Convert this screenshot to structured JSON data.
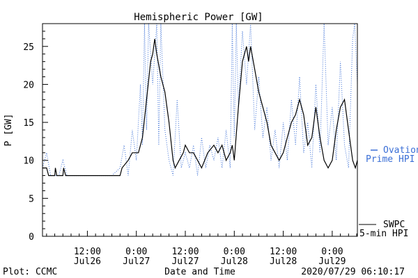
{
  "colors": {
    "swpc": "#000000",
    "ovation": "#3b6fd6",
    "axis": "#000000",
    "background": "#ffffff"
  },
  "footer": {
    "left": "Plot: CCMC",
    "right": "2020/07/29 06:10:17"
  },
  "chart_data": {
    "type": "line",
    "title": "Hemispheric Power [GW]",
    "ylabel": "P [GW]",
    "xlabel": "Date and Time",
    "ylim": [
      0,
      28
    ],
    "xlim": [
      "2020-07-26T01:00",
      "2020-07-29T06:10"
    ],
    "grid": false,
    "y_ticks": [
      0,
      5,
      10,
      15,
      20,
      25
    ],
    "x_ticks": [
      {
        "x": "2020-07-26T12:00",
        "time": "12:00",
        "date": "Jul26"
      },
      {
        "x": "2020-07-27T00:00",
        "time": "0:00",
        "date": "Jul27"
      },
      {
        "x": "2020-07-27T12:00",
        "time": "12:00",
        "date": "Jul27"
      },
      {
        "x": "2020-07-28T00:00",
        "time": "0:00",
        "date": "Jul28"
      },
      {
        "x": "2020-07-28T12:00",
        "time": "12:00",
        "date": "Jul28"
      },
      {
        "x": "2020-07-29T00:00",
        "time": "0:00",
        "date": "Jul29"
      }
    ],
    "series": [
      {
        "name": "SWPC 5-min HPI",
        "legend_lines": [
          "SWPC",
          "5-min HPI"
        ],
        "style": "solid",
        "color": "#000000",
        "points": [
          [
            "2020-07-26T01:00",
            9
          ],
          [
            "2020-07-26T02:00",
            9
          ],
          [
            "2020-07-26T02:30",
            8
          ],
          [
            "2020-07-26T04:00",
            8
          ],
          [
            "2020-07-26T04:10",
            9
          ],
          [
            "2020-07-26T04:30",
            8
          ],
          [
            "2020-07-26T06:00",
            8
          ],
          [
            "2020-07-26T06:10",
            9
          ],
          [
            "2020-07-26T06:40",
            8
          ],
          [
            "2020-07-26T14:00",
            8
          ],
          [
            "2020-07-26T20:00",
            8
          ],
          [
            "2020-07-26T20:30",
            9
          ],
          [
            "2020-07-26T22:00",
            10
          ],
          [
            "2020-07-26T23:00",
            11
          ],
          [
            "2020-07-27T00:30",
            11
          ],
          [
            "2020-07-27T01:30",
            13
          ],
          [
            "2020-07-27T02:30",
            18
          ],
          [
            "2020-07-27T03:30",
            23
          ],
          [
            "2020-07-27T04:00",
            24
          ],
          [
            "2020-07-27T04:30",
            26
          ],
          [
            "2020-07-27T05:00",
            24
          ],
          [
            "2020-07-27T06:00",
            21
          ],
          [
            "2020-07-27T07:00",
            19
          ],
          [
            "2020-07-27T08:00",
            15
          ],
          [
            "2020-07-27T09:00",
            10
          ],
          [
            "2020-07-27T09:30",
            9
          ],
          [
            "2020-07-27T10:30",
            10
          ],
          [
            "2020-07-27T11:30",
            11
          ],
          [
            "2020-07-27T12:00",
            12
          ],
          [
            "2020-07-27T13:00",
            11
          ],
          [
            "2020-07-27T14:00",
            11
          ],
          [
            "2020-07-27T15:00",
            10
          ],
          [
            "2020-07-27T16:00",
            9
          ],
          [
            "2020-07-27T17:30",
            11
          ],
          [
            "2020-07-27T19:00",
            12
          ],
          [
            "2020-07-27T20:00",
            11
          ],
          [
            "2020-07-27T21:00",
            12
          ],
          [
            "2020-07-27T22:00",
            10
          ],
          [
            "2020-07-27T23:00",
            11
          ],
          [
            "2020-07-27T23:30",
            12
          ],
          [
            "2020-07-28T00:00",
            10
          ],
          [
            "2020-07-28T01:00",
            17
          ],
          [
            "2020-07-28T02:00",
            23
          ],
          [
            "2020-07-28T02:30",
            24
          ],
          [
            "2020-07-28T03:00",
            25
          ],
          [
            "2020-07-28T03:30",
            23
          ],
          [
            "2020-07-28T04:00",
            25
          ],
          [
            "2020-07-28T05:00",
            22
          ],
          [
            "2020-07-28T06:00",
            19
          ],
          [
            "2020-07-28T07:00",
            17
          ],
          [
            "2020-07-28T08:00",
            15
          ],
          [
            "2020-07-28T09:00",
            12
          ],
          [
            "2020-07-28T10:00",
            11
          ],
          [
            "2020-07-28T11:00",
            10
          ],
          [
            "2020-07-28T12:00",
            11
          ],
          [
            "2020-07-28T13:00",
            13
          ],
          [
            "2020-07-28T14:00",
            15
          ],
          [
            "2020-07-28T15:00",
            16
          ],
          [
            "2020-07-28T16:00",
            18
          ],
          [
            "2020-07-28T17:00",
            16
          ],
          [
            "2020-07-28T18:00",
            12
          ],
          [
            "2020-07-28T19:00",
            13
          ],
          [
            "2020-07-28T20:00",
            17
          ],
          [
            "2020-07-28T21:00",
            13
          ],
          [
            "2020-07-28T22:00",
            10
          ],
          [
            "2020-07-28T23:00",
            9
          ],
          [
            "2020-07-29T00:00",
            10
          ],
          [
            "2020-07-29T01:00",
            14
          ],
          [
            "2020-07-29T02:00",
            17
          ],
          [
            "2020-07-29T03:00",
            18
          ],
          [
            "2020-07-29T04:00",
            14
          ],
          [
            "2020-07-29T05:00",
            10
          ],
          [
            "2020-07-29T05:40",
            9
          ],
          [
            "2020-07-29T06:10",
            10
          ]
        ]
      },
      {
        "name": "Ovation Prime HPI",
        "legend_lines": [
          "Ovation",
          "Prime HPI"
        ],
        "style": "dotted",
        "color": "#3b6fd6",
        "points": [
          [
            "2020-07-26T01:00",
            9
          ],
          [
            "2020-07-26T02:00",
            11
          ],
          [
            "2020-07-26T03:00",
            8
          ],
          [
            "2020-07-26T05:00",
            8
          ],
          [
            "2020-07-26T06:00",
            10
          ],
          [
            "2020-07-26T07:00",
            8
          ],
          [
            "2020-07-26T18:00",
            8
          ],
          [
            "2020-07-26T20:00",
            9
          ],
          [
            "2020-07-26T21:00",
            12
          ],
          [
            "2020-07-26T22:00",
            8
          ],
          [
            "2020-07-26T23:00",
            14
          ],
          [
            "2020-07-27T00:00",
            10
          ],
          [
            "2020-07-27T01:00",
            20
          ],
          [
            "2020-07-27T01:30",
            12
          ],
          [
            "2020-07-27T02:00",
            28
          ],
          [
            "2020-07-27T02:30",
            14
          ],
          [
            "2020-07-27T03:00",
            28
          ],
          [
            "2020-07-27T04:00",
            20
          ],
          [
            "2020-07-27T05:00",
            28
          ],
          [
            "2020-07-27T05:30",
            12
          ],
          [
            "2020-07-27T06:00",
            28
          ],
          [
            "2020-07-27T07:00",
            14
          ],
          [
            "2020-07-27T08:00",
            10
          ],
          [
            "2020-07-27T09:00",
            8
          ],
          [
            "2020-07-27T10:00",
            18
          ],
          [
            "2020-07-27T11:00",
            9
          ],
          [
            "2020-07-27T12:00",
            11
          ],
          [
            "2020-07-27T13:00",
            9
          ],
          [
            "2020-07-27T14:00",
            12
          ],
          [
            "2020-07-27T15:00",
            8
          ],
          [
            "2020-07-27T16:00",
            13
          ],
          [
            "2020-07-27T17:00",
            9
          ],
          [
            "2020-07-27T18:00",
            12
          ],
          [
            "2020-07-27T19:00",
            10
          ],
          [
            "2020-07-27T20:00",
            13
          ],
          [
            "2020-07-27T21:00",
            9
          ],
          [
            "2020-07-27T22:00",
            14
          ],
          [
            "2020-07-27T23:00",
            9
          ],
          [
            "2020-07-27T23:30",
            28
          ],
          [
            "2020-07-28T00:00",
            13
          ],
          [
            "2020-07-28T00:30",
            28
          ],
          [
            "2020-07-28T01:00",
            17
          ],
          [
            "2020-07-28T02:00",
            27
          ],
          [
            "2020-07-28T03:00",
            20
          ],
          [
            "2020-07-28T04:00",
            28
          ],
          [
            "2020-07-28T05:00",
            14
          ],
          [
            "2020-07-28T06:00",
            21
          ],
          [
            "2020-07-28T07:00",
            13
          ],
          [
            "2020-07-28T08:00",
            17
          ],
          [
            "2020-07-28T09:00",
            10
          ],
          [
            "2020-07-28T10:00",
            14
          ],
          [
            "2020-07-28T11:00",
            9
          ],
          [
            "2020-07-28T12:00",
            15
          ],
          [
            "2020-07-28T13:00",
            10
          ],
          [
            "2020-07-28T14:00",
            18
          ],
          [
            "2020-07-28T15:00",
            12
          ],
          [
            "2020-07-28T16:00",
            21
          ],
          [
            "2020-07-28T17:00",
            11
          ],
          [
            "2020-07-28T18:00",
            15
          ],
          [
            "2020-07-28T19:00",
            9
          ],
          [
            "2020-07-28T20:00",
            20
          ],
          [
            "2020-07-28T21:00",
            11
          ],
          [
            "2020-07-28T22:00",
            28
          ],
          [
            "2020-07-28T23:00",
            12
          ],
          [
            "2020-07-29T00:00",
            17
          ],
          [
            "2020-07-29T01:00",
            10
          ],
          [
            "2020-07-29T02:00",
            23
          ],
          [
            "2020-07-29T03:00",
            12
          ],
          [
            "2020-07-29T04:00",
            9
          ],
          [
            "2020-07-29T05:00",
            26
          ],
          [
            "2020-07-29T05:30",
            28
          ],
          [
            "2020-07-29T06:10",
            20
          ]
        ]
      }
    ]
  }
}
